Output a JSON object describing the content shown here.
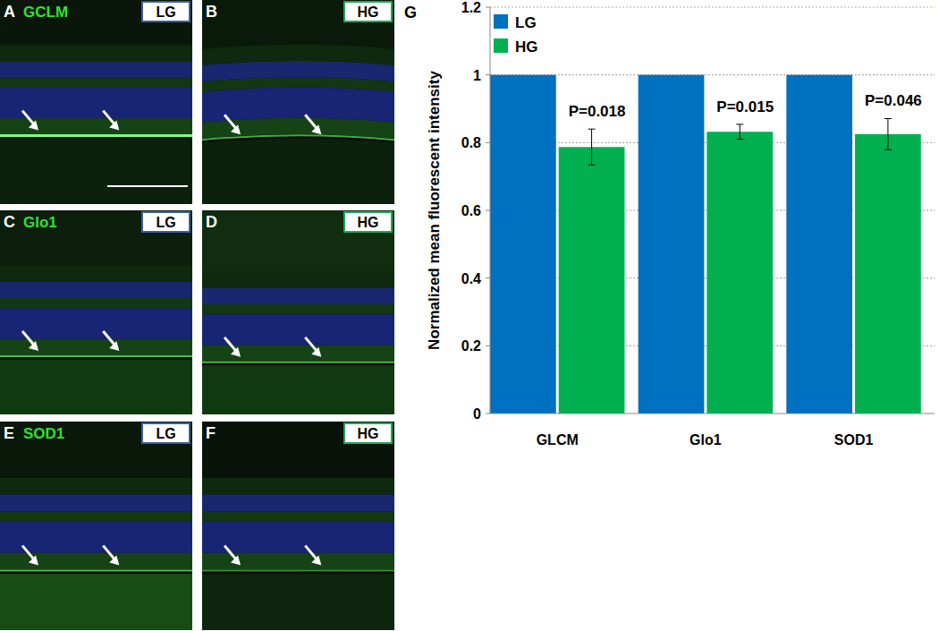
{
  "panels": [
    {
      "letter": "A",
      "stain": "GCLM",
      "condition": "LG"
    },
    {
      "letter": "B",
      "condition": "HG"
    },
    {
      "letter": "C",
      "stain": "Glo1",
      "condition": "LG"
    },
    {
      "letter": "D",
      "condition": "HG"
    },
    {
      "letter": "E",
      "stain": "SOD1",
      "condition": "LG"
    },
    {
      "letter": "F",
      "condition": "HG"
    }
  ],
  "chart_letter": "G",
  "chart_data": {
    "type": "bar",
    "y_label": "Normalized mean fluorescent intensity",
    "categories": [
      "GLCM",
      "Glo1",
      "SOD1"
    ],
    "series": [
      {
        "name": "LG",
        "color": "#0070c0",
        "values": [
          1,
          1,
          1
        ]
      },
      {
        "name": "HG",
        "color": "#00b050",
        "values": [
          0.787,
          0.832,
          0.825
        ],
        "errors": [
          0.053,
          0.022,
          0.046
        ]
      }
    ],
    "annotations": [
      "P=0.018",
      "P=0.015",
      "P=0.046"
    ],
    "ylim": [
      0,
      1.2
    ],
    "yticks": [
      0,
      0.2,
      0.4,
      0.6,
      0.8,
      1,
      1.2
    ],
    "grid": true,
    "legend": "upper left"
  }
}
